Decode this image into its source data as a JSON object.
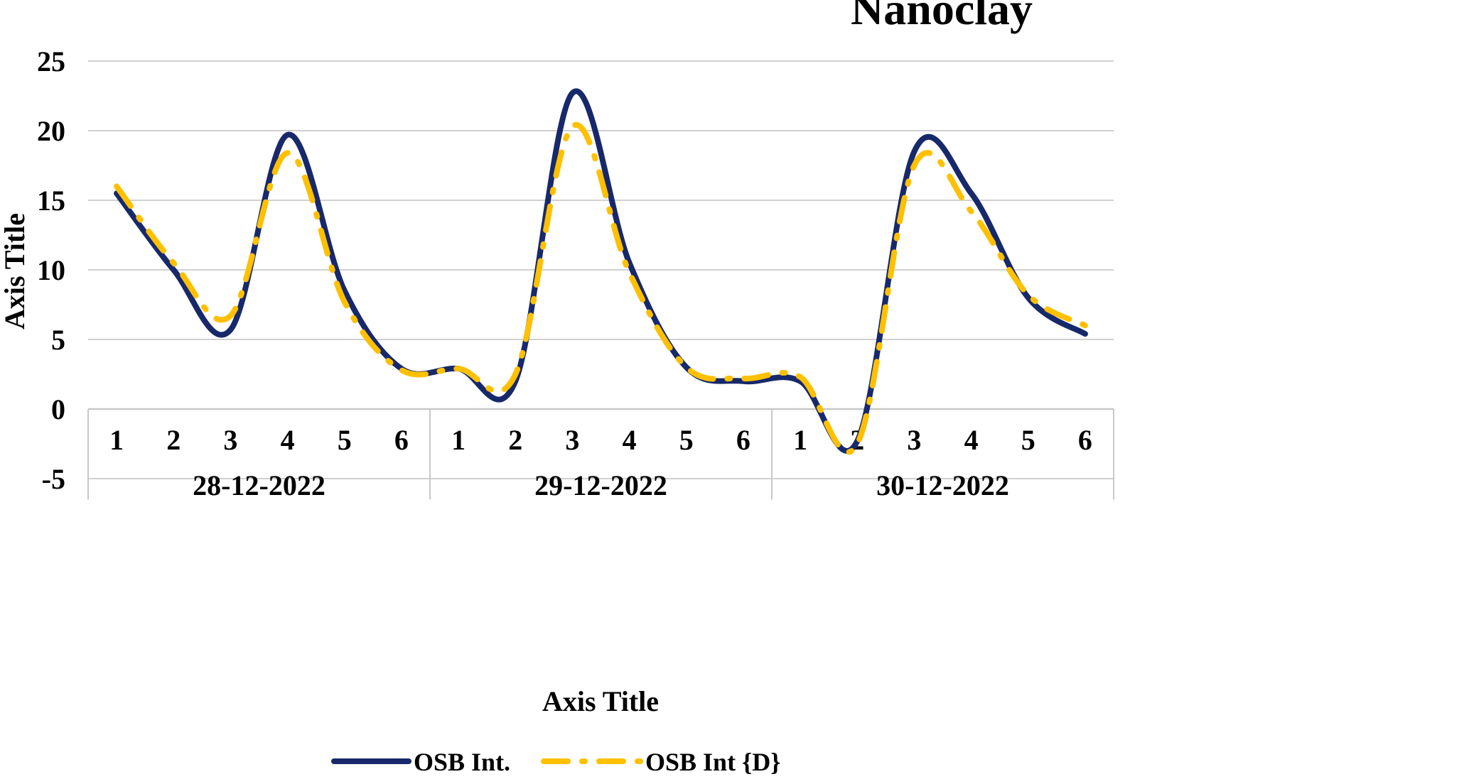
{
  "chart_data": {
    "type": "line",
    "title": "Nanoclay",
    "xlabel": "Axis Title",
    "ylabel": "Axis Title",
    "ylim": [
      -5,
      25
    ],
    "yticks": [
      -5,
      0,
      5,
      10,
      15,
      20,
      25
    ],
    "grid": true,
    "legend_position": "bottom",
    "groups": [
      {
        "label": "28-12-2022",
        "categories": [
          "1",
          "2",
          "3",
          "4",
          "5",
          "6"
        ]
      },
      {
        "label": "29-12-2022",
        "categories": [
          "1",
          "2",
          "3",
          "4",
          "5",
          "6"
        ]
      },
      {
        "label": "30-12-2022",
        "categories": [
          "1",
          "2",
          "3",
          "4",
          "5",
          "6"
        ]
      }
    ],
    "series": [
      {
        "name": "OSB Int.",
        "color": "#17296B",
        "style": "solid",
        "values": [
          15.5,
          10,
          5.7,
          19.7,
          8.5,
          2.9,
          2.9,
          2.0,
          22.7,
          10.5,
          3.0,
          2.0,
          2.0,
          -2.3,
          18.5,
          15.5,
          8.0,
          5.4
        ]
      },
      {
        "name": "OSB Int {D}",
        "color": "#FFC000",
        "style": "dash-dot",
        "values": [
          16.0,
          10.5,
          6.7,
          18.4,
          7.7,
          2.8,
          2.9,
          2.5,
          20.3,
          9.8,
          3.0,
          2.2,
          2.3,
          -2.5,
          17.5,
          14.2,
          8.2,
          6.0
        ]
      }
    ]
  }
}
